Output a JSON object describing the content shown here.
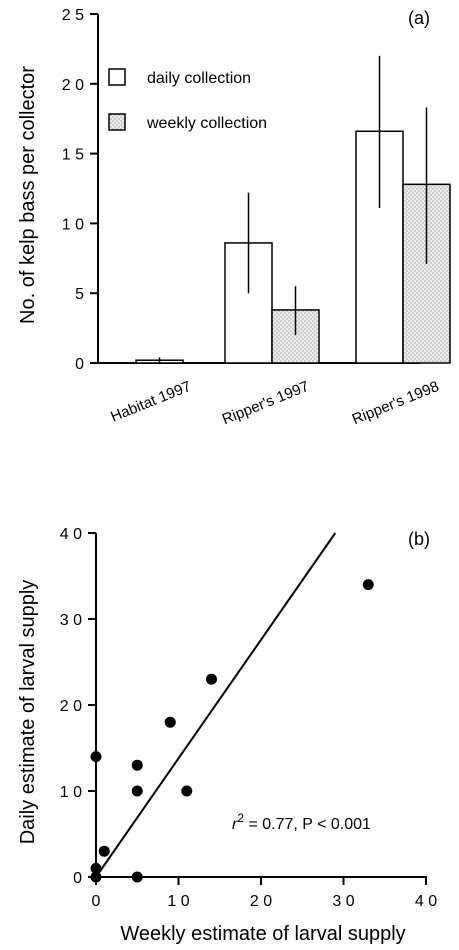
{
  "chart_data": [
    {
      "type": "bar",
      "panel_letter": "(a)",
      "ylabel": "No. of kelp bass per collector",
      "ylim": [
        0,
        25
      ],
      "y_ticks": [
        "0",
        "5",
        "1 0",
        "1 5",
        "2 0",
        "2 5"
      ],
      "y_tick_values": [
        0,
        5,
        10,
        15,
        20,
        25
      ],
      "categories": [
        "Habitat 1997",
        "Ripper's 1997",
        "Ripper's 1998"
      ],
      "series": [
        {
          "name": "daily collection",
          "style": "white",
          "values": [
            0.2,
            8.6,
            16.6
          ],
          "err_low": [
            0.0,
            5.0,
            11.1
          ],
          "err_high": [
            0.4,
            12.2,
            22.0
          ]
        },
        {
          "name": "weekly collection",
          "style": "stippled",
          "values": [
            0.0,
            3.8,
            12.8
          ],
          "err_low": [
            0.0,
            2.0,
            7.1
          ],
          "err_high": [
            0.0,
            5.5,
            18.3
          ]
        }
      ],
      "legend_position": "upper-left"
    },
    {
      "type": "scatter",
      "panel_letter": "(b)",
      "xlabel": "Weekly estimate of larval supply",
      "ylabel": "Daily estimate of larval supply",
      "xlim": [
        0,
        40
      ],
      "ylim": [
        0,
        40
      ],
      "x_ticks": [
        "0",
        "1 0",
        "2 0",
        "3 0",
        "4 0"
      ],
      "x_tick_values": [
        0,
        10,
        20,
        30,
        40
      ],
      "y_ticks": [
        "0",
        "1 0",
        "2 0",
        "3 0",
        "4 0"
      ],
      "y_tick_values": [
        0,
        10,
        20,
        30,
        40
      ],
      "points": [
        {
          "x": 0,
          "y": 0
        },
        {
          "x": 0,
          "y": 1
        },
        {
          "x": 0,
          "y": 14
        },
        {
          "x": 1,
          "y": 3
        },
        {
          "x": 5,
          "y": 0
        },
        {
          "x": 5,
          "y": 10
        },
        {
          "x": 5,
          "y": 13
        },
        {
          "x": 9,
          "y": 18
        },
        {
          "x": 11,
          "y": 10
        },
        {
          "x": 14,
          "y": 23
        },
        {
          "x": 33,
          "y": 34
        }
      ],
      "fit_line": {
        "x": [
          0,
          29
        ],
        "y": [
          0,
          40
        ]
      },
      "annotation": {
        "r_prefix": "r",
        "r_sup": "2",
        "rest": " = 0.77, P < 0.001"
      }
    }
  ]
}
